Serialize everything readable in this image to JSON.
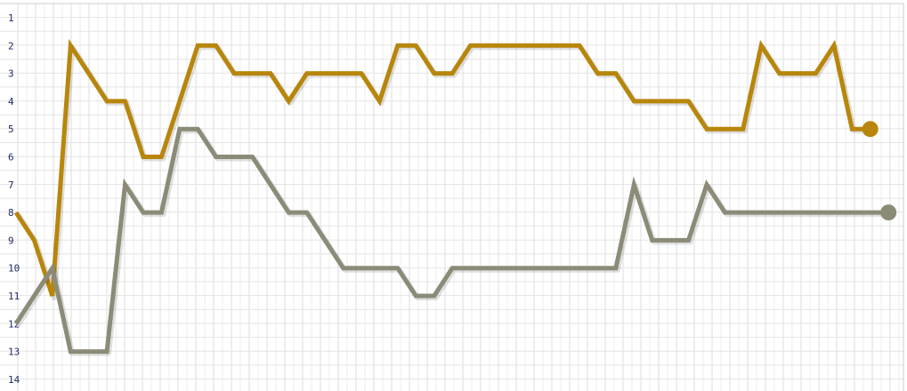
{
  "chart_data": {
    "type": "line",
    "y_reversed": true,
    "ylim": [
      1,
      14
    ],
    "yticks": [
      "1",
      "2",
      "3",
      "4",
      "5",
      "6",
      "7",
      "8",
      "9",
      "10",
      "11",
      "12",
      "13",
      "14"
    ],
    "grid": true,
    "x": [
      1,
      2,
      3,
      4,
      5,
      6,
      7,
      8,
      9,
      10,
      11,
      12,
      13,
      14,
      15,
      16,
      17,
      18,
      19,
      20,
      21,
      22,
      23,
      24,
      25,
      26,
      27,
      28,
      29,
      30,
      31,
      32,
      33,
      34,
      35,
      36,
      37,
      38,
      39,
      40,
      41,
      42,
      43,
      44,
      45,
      46,
      47,
      48,
      49
    ],
    "series": [
      {
        "color": "#b8860b",
        "values": [
          8,
          9,
          11,
          2,
          3,
          4,
          4,
          6,
          6,
          4,
          2,
          2,
          3,
          3,
          3,
          4,
          3,
          3,
          3,
          3,
          4,
          2,
          2,
          3,
          3,
          2,
          2,
          2,
          2,
          2,
          2,
          2,
          3,
          3,
          4,
          4,
          4,
          4,
          5,
          5,
          5,
          2,
          3,
          3,
          3,
          2,
          5,
          5,
          null
        ]
      },
      {
        "color": "#8b8b78",
        "values": [
          12,
          11,
          10,
          13,
          13,
          13,
          7,
          8,
          8,
          5,
          5,
          6,
          6,
          6,
          7,
          8,
          8,
          9,
          10,
          10,
          10,
          10,
          11,
          11,
          10,
          10,
          10,
          10,
          10,
          10,
          10,
          10,
          10,
          10,
          7,
          9,
          9,
          9,
          7,
          8,
          8,
          8,
          8,
          8,
          8,
          8,
          8,
          8,
          8
        ]
      }
    ]
  }
}
